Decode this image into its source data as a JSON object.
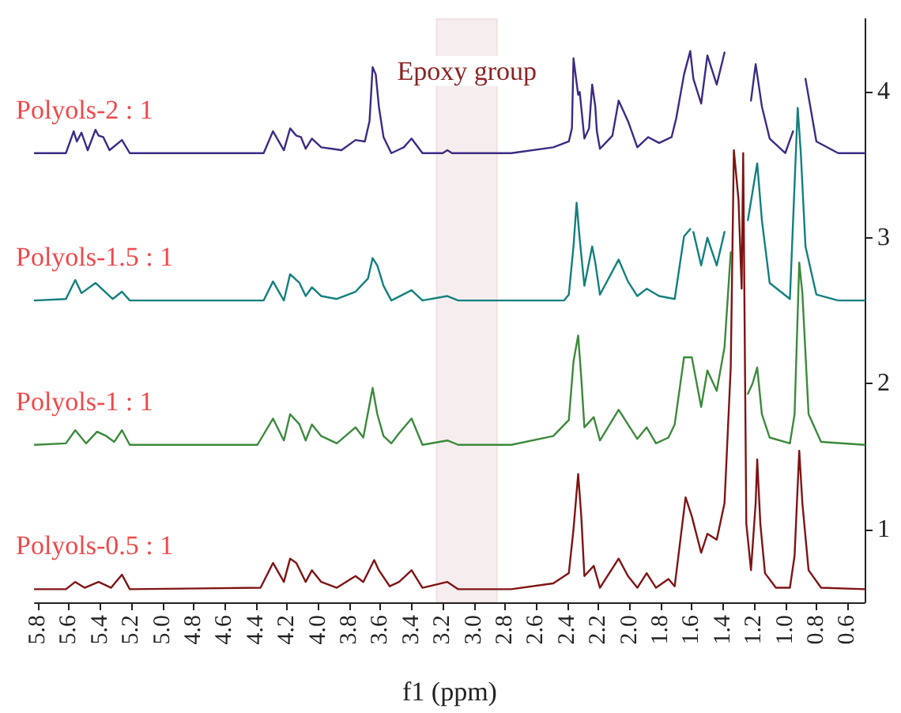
{
  "chart_data": {
    "type": "line",
    "xlabel": "f1 (ppm)",
    "xlim": [
      5.82,
      0.49
    ],
    "ylim": [
      0.5,
      4.5
    ],
    "xticks": [
      5.8,
      5.6,
      5.4,
      5.2,
      {
        "value": 5,
        "label": "5.0"
      },
      4.8,
      4.6,
      4.4,
      4.2,
      {
        "value": 4,
        "label": "4.0"
      },
      3.8,
      3.6,
      3.4,
      3.2,
      {
        "value": 3,
        "label": "3.0"
      },
      2.8,
      2.6,
      2.4,
      2.2,
      {
        "value": 2,
        "label": "2.0"
      },
      1.8,
      1.6,
      1.4,
      1.2,
      {
        "value": 1,
        "label": "1.0"
      },
      0.8,
      0.6
    ],
    "yticks": [
      1,
      2,
      3,
      4
    ],
    "grid": false,
    "marker": "none",
    "line_style": "solid",
    "bands": [
      {
        "axis": "x",
        "from": 3.24,
        "to": 2.85,
        "label": "Epoxy group",
        "color": "#8b2323"
      }
    ],
    "series": [
      {
        "name": "Polyols-2 : 1",
        "color": "#3d2a85",
        "x": [
          5.82,
          5.62,
          5.57,
          5.55,
          5.52,
          5.48,
          5.43,
          5.41,
          5.38,
          5.34,
          5.26,
          5.21,
          4.35,
          4.29,
          4.22,
          4.18,
          4.14,
          4.11,
          4.08,
          4.04,
          3.98,
          3.91,
          3.85,
          3.76,
          3.7,
          3.67,
          3.65,
          3.63,
          3.61,
          3.58,
          3.53,
          3.45,
          3.4,
          3.33,
          3.2,
          3.17,
          3.14,
          2.76,
          2.49,
          2.39,
          2.37,
          2.36,
          2.33,
          2.32,
          2.29,
          2.26,
          2.24,
          2.22,
          2.21,
          2.19,
          2.11,
          2.07,
          2.01,
          1.95,
          1.88,
          1.81,
          1.73,
          1.7,
          1.65,
          1.61,
          1.59,
          1.54,
          1.5,
          1.44,
          1.39,
          1.35,
          1.25,
          1.22,
          1.19,
          1.15,
          1.1,
          1.0,
          0.95,
          0.92,
          0.89,
          0.87,
          0.8,
          0.66,
          0.49
        ],
        "values": [
          3.58,
          3.58,
          3.73,
          3.66,
          3.72,
          3.6,
          3.74,
          3.7,
          3.69,
          3.6,
          3.67,
          3.58,
          3.58,
          3.73,
          3.6,
          3.75,
          3.7,
          3.69,
          3.61,
          3.68,
          3.62,
          3.61,
          3.6,
          3.67,
          3.66,
          3.8,
          4.17,
          4.12,
          3.9,
          3.69,
          3.58,
          3.62,
          3.68,
          3.58,
          3.58,
          3.6,
          3.58,
          3.58,
          3.62,
          3.66,
          3.75,
          4.23,
          3.98,
          4.0,
          3.68,
          3.75,
          4.05,
          3.9,
          3.73,
          3.61,
          3.7,
          3.94,
          3.8,
          3.62,
          3.69,
          3.65,
          3.69,
          3.82,
          4.12,
          4.28,
          4.09,
          3.92,
          4.25,
          4.05,
          4.27,
          null,
          null,
          3.94,
          4.19,
          3.9,
          3.68,
          3.58,
          3.73,
          null,
          null,
          4.09,
          3.66,
          3.58,
          3.58
        ]
      },
      {
        "name": "Polyols-1.5 : 1",
        "color": "#137f7f",
        "x": [
          5.82,
          5.62,
          5.56,
          5.52,
          5.43,
          5.38,
          5.32,
          5.26,
          5.21,
          4.35,
          4.29,
          4.22,
          4.18,
          4.12,
          4.08,
          4.04,
          3.98,
          3.88,
          3.76,
          3.68,
          3.65,
          3.62,
          3.58,
          3.53,
          3.4,
          3.33,
          3.17,
          3.1,
          2.42,
          2.39,
          2.36,
          2.34,
          2.32,
          2.29,
          2.24,
          2.22,
          2.19,
          2.07,
          2.01,
          1.95,
          1.89,
          1.81,
          1.71,
          1.65,
          1.61,
          1.6,
          1.59,
          1.54,
          1.5,
          1.44,
          1.39,
          1.35,
          1.26,
          1.24,
          1.18,
          1.15,
          1.1,
          0.97,
          0.92,
          0.9,
          0.87,
          0.8,
          0.66,
          0.49
        ],
        "values": [
          2.57,
          2.58,
          2.71,
          2.62,
          2.69,
          2.64,
          2.58,
          2.63,
          2.57,
          2.57,
          2.7,
          2.57,
          2.75,
          2.69,
          2.6,
          2.66,
          2.6,
          2.58,
          2.63,
          2.72,
          2.86,
          2.81,
          2.67,
          2.57,
          2.64,
          2.57,
          2.6,
          2.57,
          2.57,
          2.61,
          2.94,
          3.24,
          2.99,
          2.67,
          2.94,
          2.83,
          2.61,
          2.85,
          2.7,
          2.6,
          2.65,
          2.6,
          2.58,
          3.01,
          3.06,
          null,
          3.04,
          2.81,
          3.0,
          2.81,
          3.04,
          null,
          null,
          3.12,
          3.51,
          3.12,
          2.69,
          2.58,
          3.89,
          3.58,
          2.94,
          2.61,
          2.57,
          2.57
        ]
      },
      {
        "name": "Polyols-1 : 1",
        "color": "#3c8a3c",
        "x": [
          5.82,
          5.62,
          5.56,
          5.49,
          5.42,
          5.36,
          5.31,
          5.26,
          5.21,
          4.39,
          4.29,
          4.22,
          4.18,
          4.12,
          4.08,
          4.04,
          3.98,
          3.88,
          3.76,
          3.71,
          3.65,
          3.62,
          3.58,
          3.53,
          3.48,
          3.4,
          3.33,
          3.17,
          3.1,
          2.76,
          2.49,
          2.39,
          2.36,
          2.33,
          2.31,
          2.29,
          2.23,
          2.19,
          2.07,
          2.01,
          1.95,
          1.89,
          1.83,
          1.75,
          1.71,
          1.65,
          1.6,
          1.54,
          1.5,
          1.44,
          1.39,
          1.35,
          1.32,
          1.25,
          1.24,
          1.21,
          1.18,
          1.15,
          1.1,
          0.97,
          0.94,
          0.91,
          0.89,
          0.85,
          0.77,
          0.49
        ],
        "values": [
          1.58,
          1.59,
          1.68,
          1.59,
          1.67,
          1.64,
          1.6,
          1.68,
          1.58,
          1.58,
          1.76,
          1.61,
          1.79,
          1.72,
          1.61,
          1.72,
          1.64,
          1.59,
          1.7,
          1.63,
          1.97,
          1.79,
          1.64,
          1.59,
          1.66,
          1.76,
          1.58,
          1.61,
          1.58,
          1.58,
          1.64,
          1.75,
          2.15,
          2.33,
          2.04,
          1.7,
          1.77,
          1.61,
          1.82,
          1.72,
          1.62,
          1.7,
          1.59,
          1.63,
          1.72,
          2.18,
          2.18,
          1.84,
          2.09,
          1.95,
          2.25,
          2.9,
          null,
          null,
          1.93,
          2.0,
          2.11,
          1.79,
          1.63,
          1.59,
          1.79,
          2.83,
          2.62,
          1.79,
          1.6,
          1.58
        ]
      },
      {
        "name": "Polyols-0.5 : 1",
        "color": "#7f1414",
        "x": [
          5.82,
          5.62,
          5.56,
          5.5,
          5.41,
          5.33,
          5.26,
          5.21,
          4.37,
          4.29,
          4.22,
          4.18,
          4.14,
          4.08,
          4.04,
          3.98,
          3.88,
          3.76,
          3.71,
          3.64,
          3.61,
          3.54,
          3.48,
          3.4,
          3.33,
          3.17,
          3.1,
          2.76,
          2.49,
          2.39,
          2.36,
          2.33,
          2.31,
          2.29,
          2.23,
          2.19,
          2.07,
          2.01,
          1.95,
          1.89,
          1.83,
          1.75,
          1.71,
          1.64,
          1.6,
          1.54,
          1.5,
          1.44,
          1.39,
          1.35,
          1.33,
          1.3,
          1.28,
          1.27,
          1.25,
          1.22,
          1.19,
          1.18,
          1.16,
          1.13,
          1.06,
          0.97,
          0.94,
          0.91,
          0.89,
          0.85,
          0.77,
          0.49
        ],
        "values": [
          0.59,
          0.59,
          0.64,
          0.6,
          0.64,
          0.6,
          0.69,
          0.59,
          0.6,
          0.77,
          0.64,
          0.8,
          0.77,
          0.64,
          0.72,
          0.64,
          0.6,
          0.68,
          0.64,
          0.79,
          0.72,
          0.61,
          0.64,
          0.72,
          0.6,
          0.64,
          0.59,
          0.59,
          0.63,
          0.7,
          1.0,
          1.38,
          1.09,
          0.68,
          0.75,
          0.6,
          0.8,
          0.68,
          0.6,
          0.7,
          0.6,
          0.66,
          0.61,
          1.22,
          1.09,
          0.84,
          0.97,
          0.93,
          1.18,
          2.11,
          3.6,
          3.26,
          2.65,
          3.58,
          1.04,
          0.72,
          1.18,
          1.48,
          1.04,
          0.7,
          0.6,
          0.6,
          0.82,
          1.54,
          1.18,
          0.72,
          0.6,
          0.59
        ]
      }
    ]
  }
}
